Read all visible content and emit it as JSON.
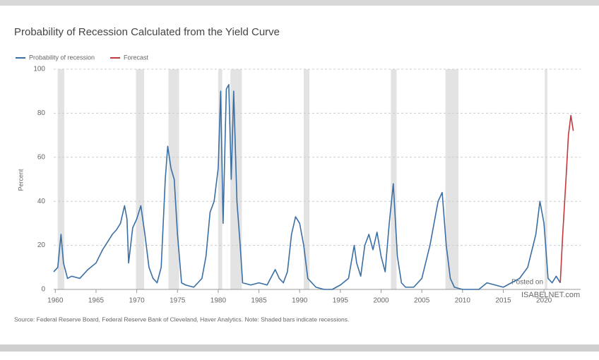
{
  "chart_data": {
    "type": "line",
    "title": "Probability of Recession Calculated from the Yield Curve",
    "y_label": "Percent",
    "note": "Source: Federal Reserve Board, Federal Reserve Bank of Cleveland, Haver Analytics. Note: Shaded bars indicate recessions.",
    "watermark": [
      "Posted on",
      "ISABELNET.com"
    ],
    "xlim": [
      1959.8,
      2024.5
    ],
    "xticks": [
      1960,
      1965,
      1970,
      1975,
      1980,
      1985,
      1990,
      1995,
      2000,
      2005,
      2010,
      2015,
      2020
    ],
    "ylim": [
      0,
      100
    ],
    "yticks": [
      0,
      20,
      40,
      60,
      80,
      100
    ],
    "grid": true,
    "legend": "top-left",
    "recessions": [
      [
        1960.3,
        1961.1
      ],
      [
        1969.9,
        1970.9
      ],
      [
        1973.9,
        1975.2
      ],
      [
        1980.0,
        1980.5
      ],
      [
        1981.5,
        1982.9
      ],
      [
        1990.5,
        1991.2
      ],
      [
        2001.2,
        2001.9
      ],
      [
        2007.9,
        2009.5
      ],
      [
        2020.1,
        2020.4
      ]
    ],
    "recession_color": "#e3e3e3",
    "series": [
      {
        "name": "Probability of recession",
        "color": "#3a6fa5",
        "x": [
          1959.8,
          1960.3,
          1960.7,
          1961.0,
          1961.5,
          1962,
          1963,
          1964,
          1965,
          1965.8,
          1966.5,
          1967,
          1967.5,
          1968,
          1968.5,
          1968.8,
          1969,
          1969.5,
          1970,
          1970.5,
          1971,
          1971.5,
          1972,
          1972.5,
          1973,
          1973.5,
          1973.8,
          1974.2,
          1974.6,
          1975,
          1975.5,
          1976,
          1977,
          1978,
          1978.5,
          1979,
          1979.5,
          1980,
          1980.3,
          1980.6,
          1981,
          1981.3,
          1981.6,
          1981.9,
          1982.3,
          1982.7,
          1983,
          1984,
          1985,
          1986,
          1987,
          1987.5,
          1988,
          1988.5,
          1989,
          1989.5,
          1990,
          1990.5,
          1991,
          1992,
          1993,
          1994,
          1995,
          1996,
          1996.7,
          1997,
          1997.5,
          1998,
          1998.5,
          1999,
          1999.5,
          2000,
          2000.5,
          2001,
          2001.5,
          2002,
          2002.5,
          2003,
          2004,
          2005,
          2006,
          2006.5,
          2007,
          2007.5,
          2008,
          2008.5,
          2009,
          2010,
          2011,
          2012,
          2013,
          2014,
          2015,
          2016,
          2017,
          2018,
          2019,
          2019.5,
          2020,
          2020.5,
          2021,
          2021.5,
          2022
        ],
        "values": [
          8,
          10,
          25,
          12,
          5,
          6,
          5,
          9,
          12,
          18,
          22,
          25,
          27,
          30,
          38,
          32,
          12,
          28,
          32,
          38,
          25,
          10,
          5,
          3,
          10,
          50,
          65,
          55,
          50,
          25,
          3,
          2,
          1,
          5,
          15,
          35,
          40,
          55,
          90,
          30,
          91,
          93,
          50,
          90,
          40,
          20,
          3,
          2,
          3,
          2,
          9,
          5,
          3,
          8,
          25,
          33,
          30,
          20,
          5,
          1,
          0,
          0,
          2,
          5,
          20,
          12,
          6,
          20,
          25,
          18,
          26,
          15,
          8,
          30,
          48,
          15,
          3,
          1,
          1,
          5,
          20,
          30,
          40,
          44,
          20,
          5,
          1,
          0,
          0,
          0,
          3,
          2,
          1,
          3,
          5,
          10,
          25,
          40,
          30,
          5,
          3,
          6,
          3
        ]
      },
      {
        "name": "Forecast",
        "color": "#c0393b",
        "x": [
          2022,
          2022.3,
          2022.7,
          2023,
          2023.3,
          2023.6
        ],
        "values": [
          3,
          25,
          50,
          70,
          79,
          72
        ]
      }
    ]
  }
}
